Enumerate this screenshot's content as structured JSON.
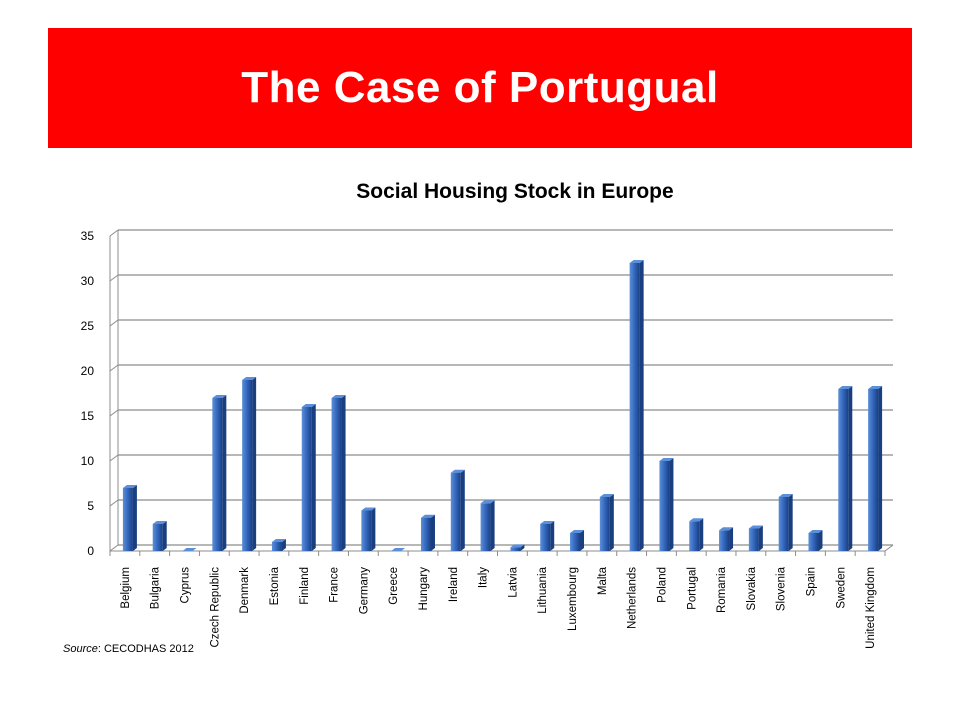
{
  "slide": {
    "title": "The Case of Portugual",
    "source_label": "Source",
    "source_text": ": CECODHAS 2012"
  },
  "colors": {
    "banner": "#ff0000",
    "bar_light": "#5b8fd9",
    "bar_main": "#2f62b8",
    "bar_dark": "#1a3f80"
  },
  "chart_data": {
    "type": "bar",
    "title": "Social Housing Stock in Europe",
    "categories": [
      "Belgium",
      "Bulgaria",
      "Cyprus",
      "Czech Republic",
      "Denmark",
      "Estonia",
      "Finland",
      "France",
      "Germany",
      "Greece",
      "Hungary",
      "Ireland",
      "Italy",
      "Latvia",
      "Lithuania",
      "Luxembourg",
      "Malta",
      "Netherlands",
      "Poland",
      "Portugal",
      "Romania",
      "Slovakia",
      "Slovenia",
      "Spain",
      "Sweden",
      "United Kingdom"
    ],
    "values": [
      7,
      3,
      0,
      17,
      19,
      1,
      16,
      17,
      4.5,
      0,
      3.7,
      8.7,
      5.3,
      0.4,
      3,
      2,
      6,
      32,
      10,
      3.3,
      2.3,
      2.5,
      6,
      2,
      18,
      18
    ],
    "ylim": [
      0,
      35
    ],
    "yticks": [
      0,
      5,
      10,
      15,
      20,
      25,
      30,
      35
    ],
    "grid": true,
    "legend": "none"
  }
}
